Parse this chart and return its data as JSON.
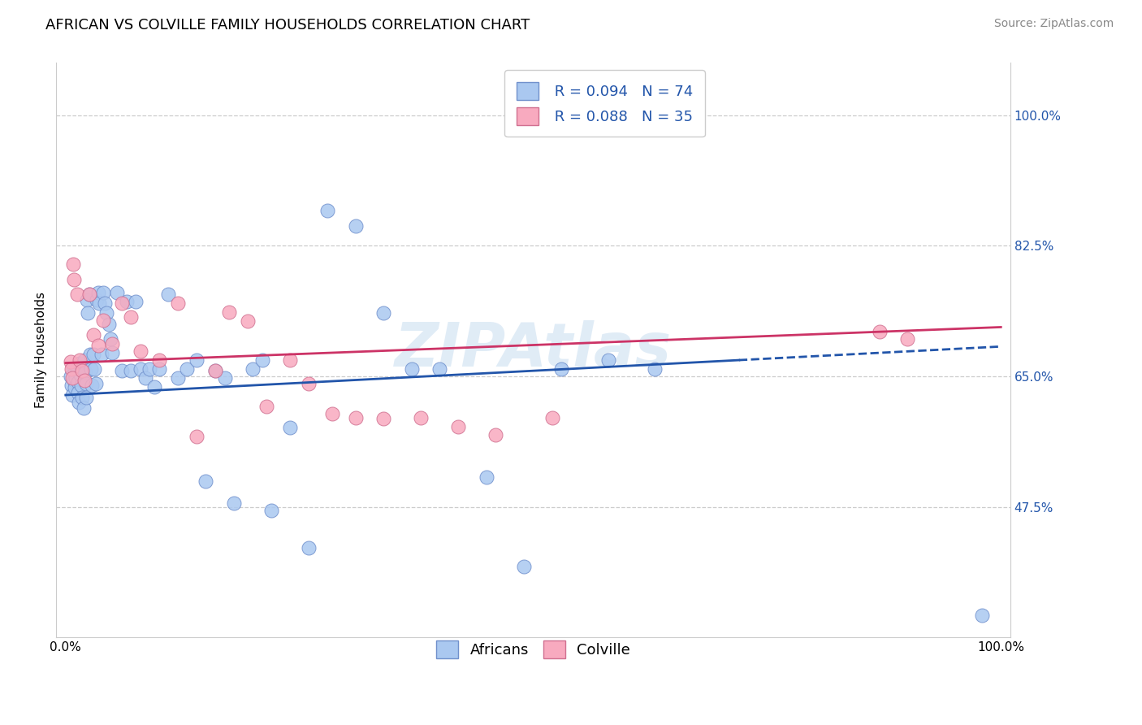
{
  "title": "AFRICAN VS COLVILLE FAMILY HOUSEHOLDS CORRELATION CHART",
  "source": "Source: ZipAtlas.com",
  "ylabel": "Family Households",
  "r1": 0.094,
  "n1": 74,
  "r2": 0.088,
  "n2": 35,
  "color_blue_fill": "#aac8f0",
  "color_pink_fill": "#f8aabf",
  "color_blue_edge": "#7090cc",
  "color_pink_edge": "#d07090",
  "color_blue_line": "#2255aa",
  "color_pink_line": "#cc3366",
  "color_blue_text": "#2255aa",
  "ytick_values": [
    0.475,
    0.65,
    0.825,
    1.0
  ],
  "ytick_labels": [
    "47.5%",
    "65.0%",
    "82.5%",
    "100.0%"
  ],
  "xlim": [
    -0.01,
    1.01
  ],
  "ylim": [
    0.3,
    1.07
  ],
  "legend_label1": "Africans",
  "legend_label2": "Colville",
  "africans_x": [
    0.005,
    0.006,
    0.007,
    0.008,
    0.009,
    0.01,
    0.01,
    0.011,
    0.012,
    0.013,
    0.013,
    0.014,
    0.015,
    0.016,
    0.017,
    0.018,
    0.019,
    0.02,
    0.021,
    0.022,
    0.022,
    0.023,
    0.024,
    0.025,
    0.026,
    0.027,
    0.028,
    0.03,
    0.031,
    0.032,
    0.033,
    0.035,
    0.036,
    0.038,
    0.04,
    0.042,
    0.044,
    0.046,
    0.048,
    0.05,
    0.055,
    0.06,
    0.065,
    0.07,
    0.075,
    0.08,
    0.085,
    0.09,
    0.095,
    0.1,
    0.11,
    0.12,
    0.13,
    0.14,
    0.15,
    0.16,
    0.17,
    0.18,
    0.2,
    0.21,
    0.22,
    0.24,
    0.26,
    0.28,
    0.31,
    0.34,
    0.37,
    0.4,
    0.45,
    0.49,
    0.53,
    0.58,
    0.63,
    0.98
  ],
  "africans_y": [
    0.65,
    0.638,
    0.625,
    0.66,
    0.645,
    0.655,
    0.635,
    0.648,
    0.66,
    0.642,
    0.628,
    0.615,
    0.668,
    0.652,
    0.638,
    0.622,
    0.608,
    0.672,
    0.656,
    0.64,
    0.622,
    0.752,
    0.735,
    0.76,
    0.68,
    0.66,
    0.638,
    0.68,
    0.66,
    0.64,
    0.752,
    0.762,
    0.748,
    0.68,
    0.762,
    0.748,
    0.735,
    0.72,
    0.7,
    0.682,
    0.762,
    0.658,
    0.75,
    0.658,
    0.75,
    0.66,
    0.648,
    0.66,
    0.636,
    0.66,
    0.76,
    0.648,
    0.66,
    0.672,
    0.51,
    0.658,
    0.648,
    0.48,
    0.66,
    0.672,
    0.47,
    0.582,
    0.42,
    0.872,
    0.852,
    0.735,
    0.66,
    0.66,
    0.515,
    0.395,
    0.66,
    0.672,
    0.66,
    0.33
  ],
  "colville_x": [
    0.005,
    0.006,
    0.007,
    0.008,
    0.009,
    0.012,
    0.015,
    0.018,
    0.02,
    0.025,
    0.03,
    0.035,
    0.04,
    0.05,
    0.06,
    0.07,
    0.08,
    0.1,
    0.12,
    0.14,
    0.16,
    0.175,
    0.195,
    0.215,
    0.24,
    0.26,
    0.285,
    0.31,
    0.34,
    0.38,
    0.42,
    0.46,
    0.52,
    0.87,
    0.9
  ],
  "colville_y": [
    0.67,
    0.66,
    0.648,
    0.8,
    0.78,
    0.76,
    0.672,
    0.658,
    0.645,
    0.76,
    0.706,
    0.692,
    0.725,
    0.694,
    0.748,
    0.73,
    0.684,
    0.672,
    0.748,
    0.57,
    0.658,
    0.736,
    0.724,
    0.61,
    0.672,
    0.64,
    0.6,
    0.594,
    0.593,
    0.595,
    0.583,
    0.572,
    0.595,
    0.71,
    0.7
  ],
  "background_color": "#ffffff",
  "grid_color": "#cccccc",
  "watermark": "ZIPAtlas",
  "title_fontsize": 13,
  "axis_label_fontsize": 11,
  "tick_fontsize": 11,
  "legend_fontsize": 13,
  "source_fontsize": 10
}
